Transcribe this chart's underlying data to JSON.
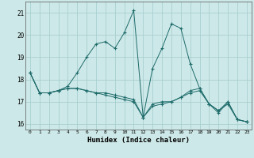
{
  "xlabel": "Humidex (Indice chaleur)",
  "background_color": "#cde8e8",
  "grid_color": "#a8cfcf",
  "line_color": "#1e6b6b",
  "xlim": [
    -0.5,
    23.5
  ],
  "ylim": [
    15.75,
    21.5
  ],
  "yticks": [
    16,
    17,
    18,
    19,
    20,
    21
  ],
  "xticks": [
    0,
    1,
    2,
    3,
    4,
    5,
    6,
    7,
    8,
    9,
    10,
    11,
    12,
    13,
    14,
    15,
    16,
    17,
    18,
    19,
    20,
    21,
    22,
    23
  ],
  "series": [
    {
      "x": [
        0,
        1,
        2,
        3,
        4,
        5,
        6,
        7,
        8,
        9,
        10,
        11,
        12,
        13,
        14,
        15,
        16,
        17,
        18,
        19,
        20,
        21,
        22,
        23
      ],
      "y": [
        18.3,
        17.4,
        17.4,
        17.5,
        17.6,
        17.6,
        17.5,
        17.4,
        17.4,
        17.3,
        17.2,
        17.1,
        16.3,
        16.9,
        17.0,
        17.0,
        17.2,
        17.5,
        17.6,
        16.9,
        16.6,
        17.0,
        16.2,
        16.1
      ]
    },
    {
      "x": [
        0,
        1,
        2,
        3,
        4,
        5,
        6,
        7,
        8,
        9,
        10,
        11,
        12,
        13,
        14,
        15,
        16,
        17,
        18,
        19,
        20,
        21,
        22,
        23
      ],
      "y": [
        18.3,
        17.4,
        17.4,
        17.5,
        17.6,
        17.6,
        17.5,
        17.4,
        17.3,
        17.2,
        17.1,
        17.0,
        16.3,
        16.8,
        16.9,
        17.0,
        17.2,
        17.4,
        17.5,
        16.9,
        16.5,
        17.0,
        16.2,
        16.1
      ]
    },
    {
      "x": [
        0,
        1,
        2,
        3,
        4,
        5,
        6,
        7,
        8,
        9,
        10,
        11,
        12,
        13,
        14,
        15,
        16,
        17,
        18,
        19,
        20,
        21,
        22,
        23
      ],
      "y": [
        18.3,
        17.4,
        17.4,
        17.5,
        17.7,
        18.3,
        19.0,
        19.6,
        19.7,
        19.4,
        20.1,
        21.1,
        16.3,
        18.5,
        19.4,
        20.5,
        20.3,
        18.7,
        17.6,
        16.9,
        16.6,
        16.9,
        16.2,
        16.1
      ]
    }
  ]
}
